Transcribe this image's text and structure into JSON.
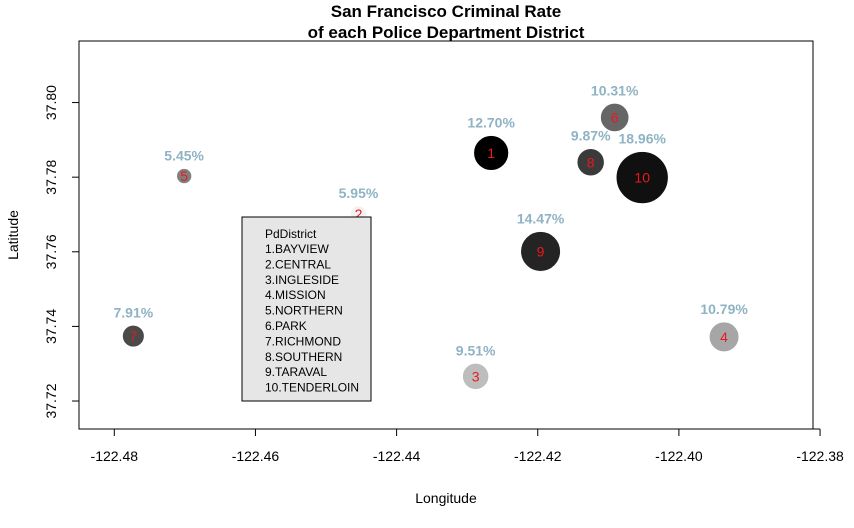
{
  "chart_data": {
    "type": "scatter",
    "title_line1": "San Francisco Criminal Rate",
    "title_line2": "of each Police Department District",
    "xlabel": "Longitude",
    "ylabel": "Latitude",
    "xlim": [
      -122.485,
      -122.381
    ],
    "ylim": [
      37.7125,
      37.8165
    ],
    "xticks": [
      -122.48,
      -122.46,
      -122.44,
      -122.42,
      -122.4,
      -122.38
    ],
    "xtick_labels": [
      "-122.48",
      "-122.46",
      "-122.44",
      "-122.42",
      "-122.40",
      "-122.38"
    ],
    "yticks": [
      37.72,
      37.74,
      37.76,
      37.78,
      37.8
    ],
    "ytick_labels": [
      "37.72",
      "37.74",
      "37.76",
      "37.78",
      "37.80"
    ],
    "points": [
      {
        "id": "1",
        "x": -122.4266,
        "y": 37.7865,
        "rate": "12.70%",
        "value": 12.7,
        "fill": "#000000"
      },
      {
        "id": "2",
        "x": -122.4454,
        "y": 37.7701,
        "rate": "5.95%",
        "value": 5.95,
        "fill": "#f2f2f2"
      },
      {
        "id": "3",
        "x": -122.4288,
        "y": 37.7266,
        "rate": "9.51%",
        "value": 9.51,
        "fill": "#bdbdbd"
      },
      {
        "id": "4",
        "x": -122.3936,
        "y": 37.7372,
        "rate": "10.79%",
        "value": 10.79,
        "fill": "#a6a6a6"
      },
      {
        "id": "5",
        "x": -122.4701,
        "y": 37.7803,
        "rate": "5.45%",
        "value": 5.45,
        "fill": "#808080"
      },
      {
        "id": "6",
        "x": -122.4091,
        "y": 37.796,
        "rate": "10.31%",
        "value": 10.31,
        "fill": "#666666"
      },
      {
        "id": "7",
        "x": -122.4773,
        "y": 37.7374,
        "rate": "7.91%",
        "value": 7.91,
        "fill": "#4a4a4a"
      },
      {
        "id": "8",
        "x": -122.4125,
        "y": 37.784,
        "rate": "9.87%",
        "value": 9.87,
        "fill": "#3a3a3a"
      },
      {
        "id": "9",
        "x": -122.4196,
        "y": 37.7601,
        "rate": "14.47%",
        "value": 14.47,
        "fill": "#242424"
      },
      {
        "id": "10",
        "x": -122.4052,
        "y": 37.7799,
        "rate": "18.96%",
        "value": 18.96,
        "fill": "#101010"
      }
    ],
    "legend": {
      "title": "PdDistrict",
      "position": "bottom-left",
      "entries": [
        "1.BAYVIEW",
        "2.CENTRAL",
        "3.INGLESIDE",
        "4.MISSION",
        "5.NORTHERN",
        "6.PARK",
        "7.RICHMOND",
        "8.SOUTHERN",
        "9.TARAVAL",
        "10.TENDERLOIN"
      ]
    },
    "grid": false,
    "colors": {
      "point_label": "#e8191f",
      "rate_label": "#8fb3c4",
      "legend_bg": "#e6e6e6"
    }
  }
}
